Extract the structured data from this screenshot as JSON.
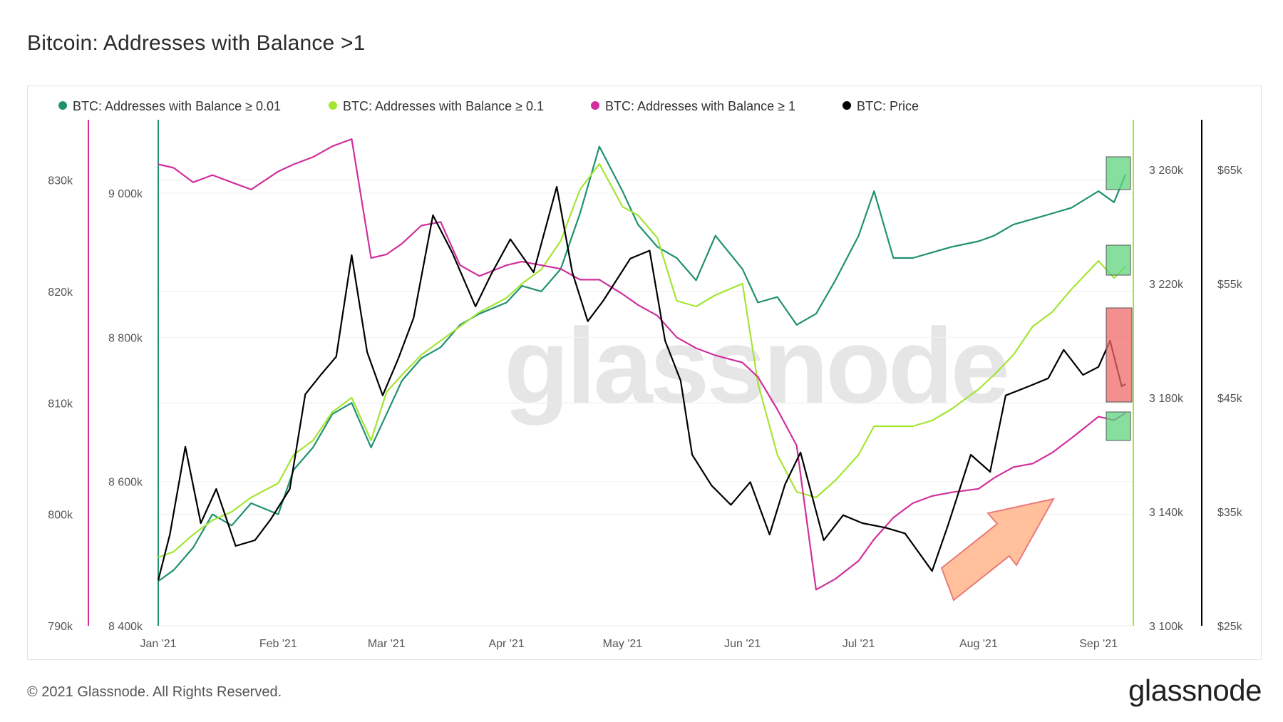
{
  "title": "Bitcoin: Addresses with Balance >1",
  "footer": {
    "copyright": "© 2021 Glassnode. All Rights Reserved.",
    "logo": "glassnode"
  },
  "watermark": "glassnode",
  "colors": {
    "bal001": "#1f9171",
    "bal01": "#a4e534",
    "bal1": "#d02f9c",
    "price": "#000000",
    "up_box": "#5fd47f",
    "down_box": "#f06a6a",
    "arrow": "#ffb58a"
  },
  "chart_data": {
    "type": "line",
    "title": "Bitcoin: Addresses with Balance >1",
    "x_ticks": [
      "Jan '21",
      "Feb '21",
      "Mar '21",
      "Apr '21",
      "May '21",
      "Jun '21",
      "Jul '21",
      "Aug '21",
      "Sep '21"
    ],
    "axes": {
      "bal001": {
        "ticks": [
          "790k",
          "800k",
          "810k",
          "820k",
          "830k"
        ],
        "range": [
          790000,
          834000
        ]
      },
      "bal1": {
        "ticks": [
          "8 400k",
          "8 600k",
          "8 800k",
          "9 000k"
        ],
        "range": [
          8400000,
          9080000
        ]
      },
      "bal01": {
        "ticks": [
          "3 100k",
          "3 140k",
          "3 180k",
          "3 220k",
          "3 260k"
        ],
        "range": [
          3100000,
          3272000
        ]
      },
      "price": {
        "ticks": [
          "$25k",
          "$35k",
          "$45k",
          "$55k",
          "$65k"
        ],
        "range": [
          25000,
          68000
        ],
        "scale": "linear"
      }
    },
    "legend": [
      "BTC: Addresses with Balance ≥ 0.01",
      "BTC: Addresses with Balance ≥ 0.1",
      "BTC: Addresses with Balance ≥ 1",
      "BTC: Price"
    ],
    "legend_position": "top-left",
    "grid": true,
    "series": [
      {
        "name": "BTC: Addresses with Balance ≥ 0.01",
        "axis": "bal001",
        "color": "#1f9171",
        "x": [
          "2021-01-01",
          "2021-01-05",
          "2021-01-10",
          "2021-01-15",
          "2021-01-20",
          "2021-01-25",
          "2021-02-01",
          "2021-02-05",
          "2021-02-10",
          "2021-02-15",
          "2021-02-20",
          "2021-02-25",
          "2021-03-01",
          "2021-03-05",
          "2021-03-10",
          "2021-03-15",
          "2021-03-20",
          "2021-03-25",
          "2021-04-01",
          "2021-04-05",
          "2021-04-10",
          "2021-04-15",
          "2021-04-20",
          "2021-04-25",
          "2021-05-01",
          "2021-05-05",
          "2021-05-10",
          "2021-05-15",
          "2021-05-20",
          "2021-05-25",
          "2021-06-01",
          "2021-06-05",
          "2021-06-10",
          "2021-06-15",
          "2021-06-20",
          "2021-06-25",
          "2021-07-01",
          "2021-07-05",
          "2021-07-10",
          "2021-07-15",
          "2021-07-20",
          "2021-07-25",
          "2021-08-01",
          "2021-08-05",
          "2021-08-10",
          "2021-08-15",
          "2021-08-20",
          "2021-08-25",
          "2021-09-01",
          "2021-09-05",
          "2021-09-08"
        ],
        "y": [
          794000,
          795000,
          797000,
          800000,
          799000,
          801000,
          800000,
          804000,
          806000,
          809000,
          810000,
          806000,
          809000,
          812000,
          814000,
          815000,
          817000,
          818000,
          819000,
          820500,
          820000,
          822000,
          827000,
          833000,
          829000,
          826000,
          824000,
          823000,
          821000,
          825000,
          822000,
          819000,
          819500,
          817000,
          818000,
          821000,
          825000,
          829000,
          823000,
          823000,
          823500,
          824000,
          824500,
          825000,
          826000,
          826500,
          827000,
          827500,
          829000,
          828000,
          830500
        ]
      },
      {
        "name": "BTC: Addresses with Balance ≥ 0.1",
        "axis": "bal01",
        "color": "#a4e534",
        "x": [
          "2021-01-01",
          "2021-01-05",
          "2021-01-10",
          "2021-01-15",
          "2021-01-20",
          "2021-01-25",
          "2021-02-01",
          "2021-02-05",
          "2021-02-10",
          "2021-02-15",
          "2021-02-20",
          "2021-02-25",
          "2021-03-01",
          "2021-03-05",
          "2021-03-10",
          "2021-03-15",
          "2021-03-20",
          "2021-03-25",
          "2021-04-01",
          "2021-04-05",
          "2021-04-10",
          "2021-04-15",
          "2021-04-20",
          "2021-04-25",
          "2021-05-01",
          "2021-05-05",
          "2021-05-10",
          "2021-05-15",
          "2021-05-20",
          "2021-05-25",
          "2021-06-01",
          "2021-06-05",
          "2021-06-10",
          "2021-06-15",
          "2021-06-20",
          "2021-06-25",
          "2021-07-01",
          "2021-07-05",
          "2021-07-10",
          "2021-07-15",
          "2021-07-20",
          "2021-07-25",
          "2021-08-01",
          "2021-08-05",
          "2021-08-10",
          "2021-08-15",
          "2021-08-20",
          "2021-08-25",
          "2021-09-01",
          "2021-09-05",
          "2021-09-08"
        ],
        "y": [
          3124000,
          3126000,
          3132000,
          3137000,
          3140000,
          3145000,
          3150000,
          3160000,
          3165000,
          3175000,
          3180000,
          3165000,
          3182000,
          3188000,
          3195000,
          3200000,
          3205000,
          3210000,
          3215000,
          3220000,
          3225000,
          3235000,
          3253000,
          3262000,
          3247000,
          3244000,
          3236000,
          3214000,
          3212000,
          3216000,
          3220000,
          3185000,
          3160000,
          3147000,
          3145000,
          3151000,
          3160000,
          3170000,
          3170000,
          3170000,
          3172000,
          3176000,
          3183000,
          3188000,
          3195000,
          3205000,
          3210000,
          3218000,
          3228000,
          3222000,
          3226000
        ]
      },
      {
        "name": "BTC: Addresses with Balance ≥ 1",
        "axis": "bal1",
        "color": "#d02f9c",
        "x": [
          "2021-01-01",
          "2021-01-05",
          "2021-01-10",
          "2021-01-15",
          "2021-01-20",
          "2021-01-25",
          "2021-02-01",
          "2021-02-05",
          "2021-02-10",
          "2021-02-15",
          "2021-02-20",
          "2021-02-25",
          "2021-03-01",
          "2021-03-05",
          "2021-03-10",
          "2021-03-15",
          "2021-03-20",
          "2021-03-25",
          "2021-04-01",
          "2021-04-05",
          "2021-04-10",
          "2021-04-15",
          "2021-04-20",
          "2021-04-25",
          "2021-05-01",
          "2021-05-05",
          "2021-05-10",
          "2021-05-15",
          "2021-05-20",
          "2021-05-25",
          "2021-06-01",
          "2021-06-05",
          "2021-06-10",
          "2021-06-15",
          "2021-06-20",
          "2021-06-25",
          "2021-07-01",
          "2021-07-05",
          "2021-07-10",
          "2021-07-15",
          "2021-07-20",
          "2021-07-25",
          "2021-08-01",
          "2021-08-05",
          "2021-08-10",
          "2021-08-15",
          "2021-08-20",
          "2021-08-25",
          "2021-09-01",
          "2021-09-05",
          "2021-09-08"
        ],
        "y": [
          9040000,
          9035000,
          9015000,
          9025000,
          9015000,
          9005000,
          9030000,
          9040000,
          9050000,
          9065000,
          9075000,
          8910000,
          8915000,
          8930000,
          8955000,
          8960000,
          8900000,
          8885000,
          8900000,
          8905000,
          8900000,
          8895000,
          8880000,
          8880000,
          8860000,
          8845000,
          8830000,
          8800000,
          8785000,
          8775000,
          8765000,
          8745000,
          8700000,
          8650000,
          8450000,
          8465000,
          8490000,
          8520000,
          8550000,
          8570000,
          8580000,
          8585000,
          8590000,
          8605000,
          8620000,
          8625000,
          8640000,
          8660000,
          8690000,
          8685000,
          8695000
        ]
      },
      {
        "name": "BTC: Price",
        "axis": "price",
        "color": "#000000",
        "x": [
          "2021-01-01",
          "2021-01-04",
          "2021-01-08",
          "2021-01-12",
          "2021-01-16",
          "2021-01-21",
          "2021-01-26",
          "2021-01-30",
          "2021-02-04",
          "2021-02-08",
          "2021-02-12",
          "2021-02-16",
          "2021-02-20",
          "2021-02-24",
          "2021-02-28",
          "2021-03-04",
          "2021-03-08",
          "2021-03-13",
          "2021-03-18",
          "2021-03-24",
          "2021-03-28",
          "2021-04-02",
          "2021-04-08",
          "2021-04-14",
          "2021-04-18",
          "2021-04-22",
          "2021-04-26",
          "2021-05-03",
          "2021-05-08",
          "2021-05-12",
          "2021-05-16",
          "2021-05-19",
          "2021-05-24",
          "2021-05-29",
          "2021-06-03",
          "2021-06-08",
          "2021-06-12",
          "2021-06-16",
          "2021-06-22",
          "2021-06-27",
          "2021-07-02",
          "2021-07-08",
          "2021-07-13",
          "2021-07-20",
          "2021-07-24",
          "2021-07-30",
          "2021-08-04",
          "2021-08-08",
          "2021-08-14",
          "2021-08-19",
          "2021-08-23",
          "2021-08-28",
          "2021-09-01",
          "2021-09-04",
          "2021-09-07",
          "2021-09-08"
        ],
        "y": [
          29000,
          33000,
          40700,
          34000,
          37000,
          32000,
          32500,
          34300,
          37000,
          45300,
          47000,
          48600,
          57500,
          49000,
          45200,
          48400,
          52000,
          61000,
          57700,
          53000,
          55800,
          58900,
          56000,
          63500,
          56000,
          51700,
          53500,
          57200,
          57900,
          50000,
          46500,
          40000,
          37300,
          35600,
          37600,
          33000,
          37400,
          40200,
          32500,
          34700,
          34000,
          33600,
          33100,
          29800,
          33700,
          40000,
          38500,
          45200,
          46000,
          46700,
          49200,
          47000,
          47700,
          50000,
          46000,
          46200
        ]
      }
    ],
    "annotations": [
      "up-box on Balance ≥ 0.01",
      "up-box on Balance ≥ 0.1",
      "down-box on Price",
      "up-box on Balance ≥ 1",
      "arrow pointing up-right"
    ]
  }
}
